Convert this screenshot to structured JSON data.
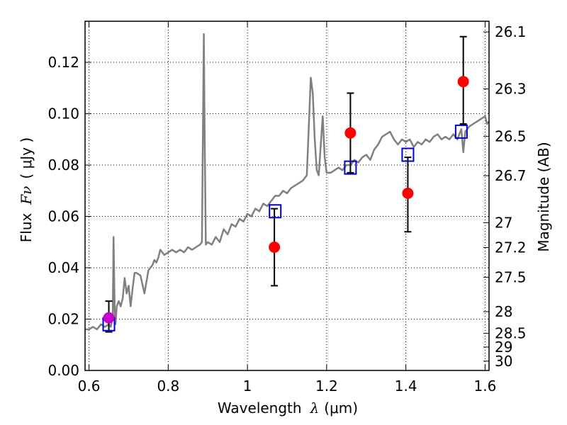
{
  "chart_data": {
    "type": "scatter",
    "xlabel_prefix": "Wavelength",
    "xlabel_symbol": "λ",
    "xlabel_unit": "(μm)",
    "ylabel_prefix": "Flux",
    "ylabel_symbol": "Fν",
    "ylabel_unit": "( μJy )",
    "y2label": "Magnitude (AB)",
    "xlim": [
      0.59,
      1.61
    ],
    "ylim": [
      0.0,
      0.136
    ],
    "grid": true,
    "x_ticks": [
      {
        "value": 0.6,
        "label": "0.6"
      },
      {
        "value": 0.8,
        "label": "0.8"
      },
      {
        "value": 1.0,
        "label": "1"
      },
      {
        "value": 1.2,
        "label": "1.2"
      },
      {
        "value": 1.4,
        "label": "1.4"
      },
      {
        "value": 1.6,
        "label": "1.6"
      }
    ],
    "y_ticks": [
      {
        "value": 0.0,
        "label": "0.00"
      },
      {
        "value": 0.02,
        "label": "0.02"
      },
      {
        "value": 0.04,
        "label": "0.04"
      },
      {
        "value": 0.06,
        "label": "0.06"
      },
      {
        "value": 0.08,
        "label": "0.08"
      },
      {
        "value": 0.1,
        "label": "0.10"
      },
      {
        "value": 0.12,
        "label": "0.12"
      }
    ],
    "magnitude_ticks": [
      {
        "magnitude": 26.1,
        "label": "26.1"
      },
      {
        "magnitude": 26.3,
        "label": "26.3"
      },
      {
        "magnitude": 26.5,
        "label": "26.5"
      },
      {
        "magnitude": 26.7,
        "label": "26.7"
      },
      {
        "magnitude": 27.0,
        "label": "27"
      },
      {
        "magnitude": 27.2,
        "label": "27.2"
      },
      {
        "magnitude": 27.5,
        "label": "27.5"
      },
      {
        "magnitude": 28.0,
        "label": "28"
      },
      {
        "magnitude": 28.5,
        "label": "28.5"
      },
      {
        "magnitude": 29.0,
        "label": "29"
      },
      {
        "magnitude": 30.0,
        "label": "30"
      }
    ],
    "series": [
      {
        "kind": "spectrum_line",
        "color": "#808080",
        "x": [
          0.59,
          0.6,
          0.61,
          0.62,
          0.63,
          0.64,
          0.65,
          0.655,
          0.66,
          0.662,
          0.665,
          0.667,
          0.67,
          0.675,
          0.68,
          0.685,
          0.69,
          0.695,
          0.7,
          0.705,
          0.71,
          0.715,
          0.72,
          0.73,
          0.74,
          0.75,
          0.755,
          0.76,
          0.765,
          0.77,
          0.775,
          0.78,
          0.79,
          0.8,
          0.81,
          0.82,
          0.83,
          0.84,
          0.85,
          0.86,
          0.87,
          0.88,
          0.885,
          0.89,
          0.892,
          0.895,
          0.9,
          0.91,
          0.92,
          0.93,
          0.94,
          0.95,
          0.96,
          0.97,
          0.98,
          0.99,
          1.0,
          1.01,
          1.02,
          1.03,
          1.04,
          1.05,
          1.06,
          1.07,
          1.08,
          1.09,
          1.1,
          1.11,
          1.12,
          1.13,
          1.14,
          1.15,
          1.16,
          1.165,
          1.17,
          1.175,
          1.18,
          1.19,
          1.195,
          1.2,
          1.21,
          1.22,
          1.23,
          1.24,
          1.25,
          1.26,
          1.27,
          1.28,
          1.29,
          1.3,
          1.31,
          1.32,
          1.33,
          1.34,
          1.35,
          1.36,
          1.37,
          1.38,
          1.39,
          1.4,
          1.41,
          1.42,
          1.43,
          1.44,
          1.45,
          1.46,
          1.47,
          1.48,
          1.49,
          1.5,
          1.51,
          1.52,
          1.53,
          1.54,
          1.545,
          1.55,
          1.56,
          1.57,
          1.58,
          1.59,
          1.6,
          1.605,
          1.61
        ],
        "y": [
          0.016,
          0.016,
          0.017,
          0.016,
          0.018,
          0.017,
          0.018,
          0.017,
          0.021,
          0.052,
          0.022,
          0.018,
          0.025,
          0.027,
          0.025,
          0.028,
          0.036,
          0.03,
          0.033,
          0.025,
          0.032,
          0.038,
          0.038,
          0.037,
          0.03,
          0.039,
          0.04,
          0.041,
          0.043,
          0.042,
          0.044,
          0.047,
          0.045,
          0.046,
          0.047,
          0.046,
          0.047,
          0.046,
          0.048,
          0.047,
          0.048,
          0.049,
          0.05,
          0.131,
          0.09,
          0.049,
          0.05,
          0.049,
          0.052,
          0.05,
          0.055,
          0.053,
          0.057,
          0.056,
          0.059,
          0.058,
          0.061,
          0.06,
          0.063,
          0.062,
          0.065,
          0.064,
          0.066,
          0.068,
          0.068,
          0.07,
          0.069,
          0.071,
          0.072,
          0.073,
          0.074,
          0.076,
          0.114,
          0.108,
          0.09,
          0.078,
          0.076,
          0.099,
          0.083,
          0.077,
          0.077,
          0.078,
          0.079,
          0.078,
          0.08,
          0.08,
          0.082,
          0.081,
          0.083,
          0.084,
          0.082,
          0.086,
          0.088,
          0.091,
          0.092,
          0.093,
          0.09,
          0.088,
          0.09,
          0.089,
          0.09,
          0.087,
          0.089,
          0.088,
          0.09,
          0.089,
          0.091,
          0.092,
          0.09,
          0.091,
          0.09,
          0.092,
          0.09,
          0.094,
          0.085,
          0.093,
          0.095,
          0.096,
          0.097,
          0.098,
          0.099,
          0.096,
          0.097
        ]
      },
      {
        "kind": "model_photometry",
        "marker": "open-square",
        "color": "#0000cc",
        "x": [
          0.65,
          1.07,
          1.26,
          1.405,
          1.54
        ],
        "y": [
          0.018,
          0.062,
          0.079,
          0.084,
          0.093
        ]
      },
      {
        "kind": "observed_photometry",
        "marker": "filled-circle",
        "color": "#ff0000",
        "x": [
          1.068,
          1.26,
          1.405,
          1.545
        ],
        "y": [
          0.048,
          0.0925,
          0.069,
          0.1125
        ],
        "yerr_low": [
          0.033,
          0.077,
          0.054,
          0.096
        ],
        "yerr_high": [
          0.063,
          0.108,
          0.083,
          0.13
        ]
      },
      {
        "kind": "observed_photometry_b",
        "marker": "filled-circle",
        "color": "#cc00cc",
        "x": [
          0.65
        ],
        "y": [
          0.0205
        ],
        "yerr_low": [
          0.015
        ],
        "yerr_high": [
          0.027
        ]
      }
    ]
  }
}
